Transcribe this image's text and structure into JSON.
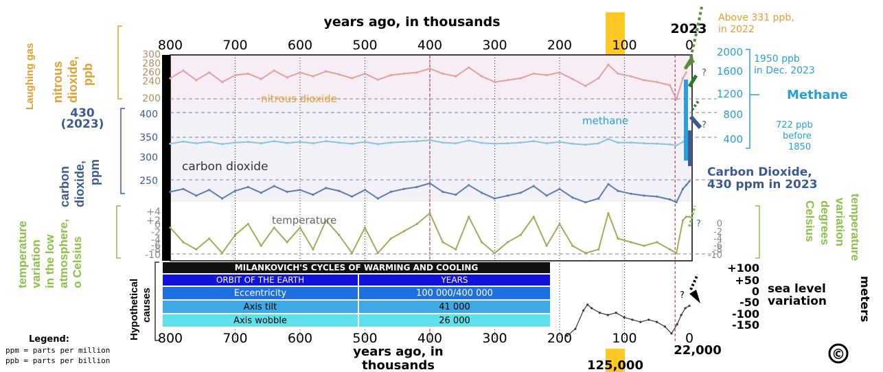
{
  "colors": {
    "nitrous": "#e0a0a0",
    "methane": "#8ec3d6",
    "co2": "#5c7bb0",
    "temp": "#a8a85a",
    "orange": "#e0a030",
    "methane_label": "#2a9fd6",
    "co2_label": "#3b5a8e",
    "temp_label": "#8cc04a",
    "highlight": "#ffc000"
  },
  "axis": {
    "top_title": "years ago, in thousands",
    "bottom_title_line1": "years ago, in",
    "bottom_title_line2": "thousands",
    "ticks": [
      "800",
      "700",
      "600",
      "500",
      "400",
      "300",
      "200",
      "100",
      "0"
    ],
    "tick_values": [
      800,
      700,
      600,
      500,
      400,
      300,
      200,
      100,
      0
    ],
    "year_2023": "2023",
    "marker_125": "125,000",
    "marker_22": "22,000"
  },
  "left_labels": {
    "laughing_gas": "Laughing gas",
    "nitrous_l1": "nitrous",
    "nitrous_l2": "dioxide,",
    "nitrous_l3": "ppb",
    "co2_430": "430",
    "co2_2023": "(2023)",
    "co2_l1": "carbon",
    "co2_l2": "dioxide,",
    "co2_l3": "ppm",
    "temp_l1": "temperature",
    "temp_l2": "variation",
    "temp_l3": "in the low",
    "temp_l4": "atmosphere,",
    "temp_l5": "o Celsius",
    "hyp_l1": "Hypothetical",
    "hyp_l2": "causes"
  },
  "left_ticks": {
    "nitrous": [
      "300",
      "280",
      "260",
      "240",
      "200"
    ],
    "co2": [
      "400",
      "350",
      "300",
      "250"
    ],
    "temp": [
      "+4",
      "+2",
      "0",
      "-2",
      "-4",
      "-6",
      "-8",
      "-10"
    ]
  },
  "right_labels": {
    "nitrous_note_l1": "Above 331  ppb,",
    "nitrous_note_l2": "in 2022",
    "methane_ticks": [
      "2000",
      "1600",
      "1200",
      "800",
      "400"
    ],
    "methane_now_l1": "1950 ppb",
    "methane_now_l2": "in Dec. 2023",
    "methane_title": "Methane",
    "methane_before_l1": "722  ppb",
    "methane_before_l2": "before",
    "methane_before_l3": "1850",
    "co2_title_l1": "Carbon Dioxide,",
    "co2_title_l2": "430 ppm in 2023",
    "temp_ticks": [
      "0",
      "-2",
      "-4",
      "-6",
      "-8",
      "-10"
    ],
    "temp_title_l1": "temperature",
    "temp_title_l2": "variation",
    "temp_title_l3": "degrees",
    "temp_title_l4": "Celsius",
    "sea_ticks": [
      "+100",
      "+50",
      "0",
      "-50",
      "-100",
      "-150"
    ],
    "sea_title_l1": "sea level",
    "sea_title_l2": "variation",
    "sea_unit": "meters",
    "q": "?"
  },
  "series_labels": {
    "nitrous": "nitrous dioxide",
    "methane": "methane",
    "co2": "carbon dioxide",
    "temp": "temperature"
  },
  "milankovich": {
    "title": "MILANKOVICH'S CYCLES  OF WARMING AND COOLING",
    "header": [
      "ORBIT OF THE EARTH",
      "YEARS"
    ],
    "rows": [
      [
        "Eccentricity",
        "100 000/400 000"
      ],
      [
        "Axis tilt",
        "41 000"
      ],
      [
        "Axis wobble",
        "26 000"
      ]
    ]
  },
  "legend": {
    "title": "Legend:",
    "l1": "ppm = parts per million",
    "l2": "ppb  = parts per billion"
  },
  "copyleft_symbol": "©",
  "chart_data": [
    {
      "type": "line",
      "title": "nitrous dioxide",
      "x_unit": "thousand years ago",
      "ylabel": "ppb",
      "ylim": [
        200,
        300
      ],
      "x": [
        800,
        780,
        760,
        740,
        720,
        700,
        680,
        660,
        640,
        620,
        600,
        580,
        560,
        540,
        520,
        500,
        480,
        460,
        440,
        420,
        400,
        380,
        360,
        340,
        320,
        300,
        280,
        260,
        240,
        220,
        200,
        180,
        160,
        140,
        125,
        110,
        90,
        70,
        50,
        30,
        20,
        10,
        5
      ],
      "values": [
        250,
        270,
        245,
        265,
        240,
        258,
        262,
        248,
        270,
        252,
        265,
        255,
        268,
        260,
        250,
        262,
        246,
        258,
        262,
        265,
        275,
        262,
        255,
        278,
        255,
        240,
        245,
        250,
        262,
        258,
        265,
        248,
        230,
        250,
        285,
        262,
        255,
        245,
        240,
        232,
        195,
        250,
        265
      ],
      "annotation": "Above 331 ppb, in 2022"
    },
    {
      "type": "line",
      "title": "methane",
      "x_unit": "thousand years ago",
      "ylabel": "ppb",
      "ylim": [
        400,
        2000
      ],
      "x": [
        800,
        780,
        760,
        740,
        720,
        700,
        680,
        660,
        640,
        620,
        600,
        580,
        560,
        540,
        520,
        500,
        480,
        460,
        440,
        420,
        400,
        380,
        360,
        340,
        320,
        300,
        280,
        260,
        240,
        220,
        200,
        180,
        160,
        140,
        125,
        110,
        90,
        70,
        50,
        30,
        20,
        10,
        5
      ],
      "values": [
        500,
        620,
        520,
        600,
        480,
        560,
        600,
        520,
        640,
        540,
        600,
        520,
        640,
        560,
        500,
        600,
        480,
        560,
        600,
        640,
        700,
        560,
        520,
        680,
        540,
        500,
        520,
        560,
        640,
        520,
        600,
        500,
        440,
        520,
        760,
        560,
        560,
        520,
        500,
        460,
        400,
        600,
        700
      ],
      "annotations": [
        "1950 ppb in Dec. 2023",
        "722 ppb before 1850"
      ]
    },
    {
      "type": "line",
      "title": "carbon dioxide",
      "x_unit": "thousand years ago",
      "ylabel": "ppm",
      "ylim": [
        200,
        430
      ],
      "x": [
        800,
        780,
        760,
        740,
        720,
        700,
        680,
        660,
        640,
        620,
        600,
        580,
        560,
        540,
        520,
        500,
        480,
        460,
        440,
        420,
        400,
        380,
        360,
        340,
        320,
        300,
        280,
        260,
        240,
        220,
        200,
        180,
        160,
        140,
        125,
        110,
        90,
        70,
        50,
        30,
        20,
        10,
        5,
        0
      ],
      "values": [
        245,
        260,
        225,
        255,
        210,
        250,
        270,
        240,
        275,
        245,
        255,
        230,
        265,
        250,
        220,
        255,
        210,
        245,
        260,
        270,
        290,
        245,
        230,
        280,
        240,
        210,
        225,
        240,
        275,
        225,
        260,
        215,
        190,
        210,
        285,
        250,
        235,
        225,
        220,
        205,
        190,
        260,
        280,
        300
      ],
      "annotation": "Carbon Dioxide, 430 ppm in 2023"
    },
    {
      "type": "line",
      "title": "temperature",
      "x_unit": "thousand years ago",
      "ylabel": "degrees Celsius",
      "ylim": [
        -10,
        4
      ],
      "x": [
        800,
        780,
        760,
        740,
        720,
        700,
        680,
        660,
        640,
        620,
        600,
        580,
        560,
        540,
        520,
        500,
        480,
        460,
        440,
        420,
        400,
        380,
        360,
        340,
        320,
        300,
        280,
        260,
        240,
        220,
        200,
        180,
        160,
        140,
        125,
        110,
        90,
        70,
        50,
        30,
        20,
        10,
        5,
        0
      ],
      "values": [
        -2,
        -6,
        -8,
        -5,
        -9,
        -4,
        -1,
        -7,
        -2,
        -6,
        -2,
        -8,
        0,
        -4,
        -9,
        -2,
        -9,
        -5,
        -3,
        -1,
        2,
        -6,
        -8,
        1,
        -6,
        -9,
        -6,
        -4,
        1,
        -7,
        -1,
        -7,
        -9,
        -8,
        2,
        -5,
        -6,
        -7,
        -6,
        -8,
        -9,
        0,
        1,
        1
      ]
    },
    {
      "type": "line",
      "title": "sea level variation",
      "x_unit": "thousand years ago",
      "ylabel": "meters",
      "ylim": [
        -150,
        100
      ],
      "x": [
        150,
        140,
        130,
        125,
        120,
        110,
        100,
        90,
        80,
        70,
        60,
        50,
        40,
        30,
        22,
        15,
        10,
        5,
        0
      ],
      "values": [
        -130,
        -100,
        -20,
        5,
        -10,
        -30,
        -40,
        -30,
        -50,
        -60,
        -70,
        -60,
        -70,
        -90,
        -120,
        -80,
        -40,
        -10,
        0
      ]
    }
  ]
}
